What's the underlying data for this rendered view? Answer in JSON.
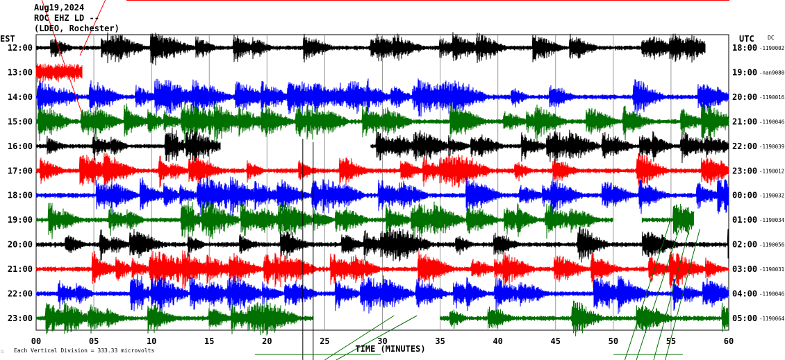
{
  "header": {
    "date": "Aug19,2024",
    "station": "ROC EHZ LD --",
    "network": "(LDEO, Rochester)",
    "left_tz": "EST",
    "right_tz": "UTC",
    "dc_label": "DC"
  },
  "footer": {
    "scale_note": "Each Vertical Division =  333.33 microvolts",
    "marker": "♘"
  },
  "chart_data": {
    "type": "line",
    "title": "",
    "xlabel": "TIME (MINUTES)",
    "ylabel": "",
    "xlim": [
      0,
      60
    ],
    "x_ticks": [
      "00",
      "05",
      "10",
      "15",
      "20",
      "25",
      "30",
      "35",
      "40",
      "45",
      "50",
      "55",
      "60"
    ],
    "grid": true,
    "rows": [
      {
        "est": "12:00",
        "utc": "18:00",
        "dc": "-1190002",
        "color": "#000000",
        "start": 0,
        "end": 58,
        "amp": 0.9
      },
      {
        "est": "13:00",
        "utc": "19:00",
        "dc": "-nan9080",
        "color": "#ff0000",
        "start": 0,
        "end": 4,
        "amp": 3.5
      },
      {
        "est": "14:00",
        "utc": "20:00",
        "dc": "-1190016",
        "color": "#0000ff",
        "start": 0,
        "end": 60,
        "amp": 1.0
      },
      {
        "est": "15:00",
        "utc": "21:00",
        "dc": "-1190046",
        "color": "#007000",
        "start": 0,
        "end": 60,
        "amp": 1.0
      },
      {
        "est": "16:00",
        "utc": "22:00",
        "dc": "-1190039",
        "color": "#000000",
        "start": 0,
        "end": 60,
        "amp": 0.9,
        "gap": [
          16,
          29
        ]
      },
      {
        "est": "17:00",
        "utc": "23:00",
        "dc": "-1190012",
        "color": "#ff0000",
        "start": 0,
        "end": 60,
        "amp": 1.0
      },
      {
        "est": "18:00",
        "utc": "00:00",
        "dc": "-1190032",
        "color": "#0000ff",
        "start": 0,
        "end": 60,
        "amp": 1.0
      },
      {
        "est": "19:00",
        "utc": "01:00",
        "dc": "-1190034",
        "color": "#007000",
        "start": 0,
        "end": 57,
        "amp": 1.0,
        "gap": [
          50,
          52.5
        ]
      },
      {
        "est": "20:00",
        "utc": "02:00",
        "dc": "-1190056",
        "color": "#000000",
        "start": 0,
        "end": 60,
        "amp": 1.0
      },
      {
        "est": "21:00",
        "utc": "03:00",
        "dc": "-1190031",
        "color": "#ff0000",
        "start": 0,
        "end": 60,
        "amp": 1.0
      },
      {
        "est": "22:00",
        "utc": "04:00",
        "dc": "-1190046",
        "color": "#0000ff",
        "start": 0,
        "end": 60,
        "amp": 1.0
      },
      {
        "est": "23:00",
        "utc": "05:00",
        "dc": "-1190064",
        "color": "#007000",
        "start": 0,
        "end": 60,
        "amp": 1.0,
        "gap": [
          24,
          35
        ]
      }
    ]
  }
}
